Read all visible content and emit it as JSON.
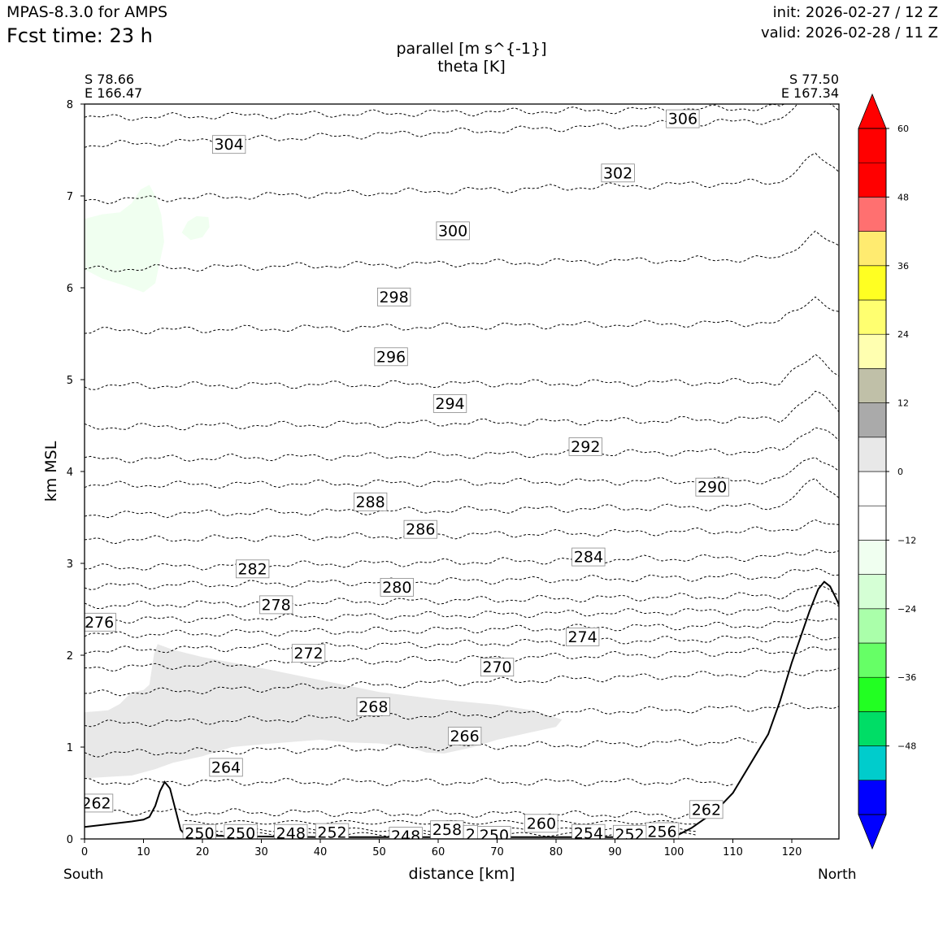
{
  "header": {
    "model": "MPAS-8.3.0 for AMPS",
    "fcst_time": "Fcst time:   23 h",
    "init": "init: 2026-02-27 / 12 Z",
    "valid": "valid: 2026-02-28 / 11 Z"
  },
  "chart_data": {
    "type": "cross-section contour",
    "title": "parallel [m s^{-1}]",
    "subtitle": "theta [K]",
    "xlabel": "distance [km]",
    "ylabel": "km MSL",
    "xlim": [
      0,
      128
    ],
    "ylim": [
      0,
      8
    ],
    "x_ticks": [
      "0",
      "10",
      "20",
      "30",
      "40",
      "50",
      "60",
      "70",
      "80",
      "90",
      "100",
      "110",
      "120"
    ],
    "y_ticks": [
      "0",
      "1",
      "2",
      "3",
      "4",
      "5",
      "6",
      "7",
      "8"
    ],
    "start_point": {
      "lat": "S 78.66",
      "lon": "E 166.47",
      "direction": "South"
    },
    "end_point": {
      "lat": "S 77.50",
      "lon": "E 167.34",
      "direction": "North"
    },
    "theta_levels": [
      262,
      264,
      266,
      268,
      270,
      272,
      274,
      276,
      278,
      280,
      282,
      284,
      286,
      288,
      290,
      292,
      294,
      296,
      298,
      300,
      302,
      304,
      306
    ],
    "theta_labels": [
      {
        "text": "306",
        "x": 101.5,
        "y": 7.84
      },
      {
        "text": "304",
        "x": 24.5,
        "y": 7.56
      },
      {
        "text": "302",
        "x": 90.5,
        "y": 7.25
      },
      {
        "text": "300",
        "x": 62.5,
        "y": 6.62
      },
      {
        "text": "298",
        "x": 52.5,
        "y": 5.9
      },
      {
        "text": "296",
        "x": 52,
        "y": 5.25
      },
      {
        "text": "294",
        "x": 62,
        "y": 4.74
      },
      {
        "text": "292",
        "x": 85,
        "y": 4.27
      },
      {
        "text": "290",
        "x": 106.5,
        "y": 3.83
      },
      {
        "text": "288",
        "x": 48.5,
        "y": 3.67
      },
      {
        "text": "286",
        "x": 57,
        "y": 3.37
      },
      {
        "text": "284",
        "x": 85.5,
        "y": 3.07
      },
      {
        "text": "282",
        "x": 28.5,
        "y": 2.94
      },
      {
        "text": "280",
        "x": 53,
        "y": 2.74
      },
      {
        "text": "278",
        "x": 32.5,
        "y": 2.55
      },
      {
        "text": "276",
        "x": 2.5,
        "y": 2.36
      },
      {
        "text": "274",
        "x": 84.5,
        "y": 2.2
      },
      {
        "text": "272",
        "x": 38,
        "y": 2.02
      },
      {
        "text": "270",
        "x": 70,
        "y": 1.87
      },
      {
        "text": "268",
        "x": 49,
        "y": 1.44
      },
      {
        "text": "266",
        "x": 64.5,
        "y": 1.12
      },
      {
        "text": "264",
        "x": 24,
        "y": 0.78
      },
      {
        "text": "262",
        "x": 2,
        "y": 0.39
      },
      {
        "text": "262",
        "x": 105.5,
        "y": 0.32
      },
      {
        "text": "260",
        "x": 77.5,
        "y": 0.17
      },
      {
        "text": "258",
        "x": 61.5,
        "y": 0.1
      },
      {
        "text": "256",
        "x": 98,
        "y": 0.08
      },
      {
        "text": "254",
        "x": 85.5,
        "y": 0.06
      },
      {
        "text": "252",
        "x": 42,
        "y": 0.07
      },
      {
        "text": "252",
        "x": 92.5,
        "y": 0.05
      },
      {
        "text": "250",
        "x": 19.5,
        "y": 0.06
      },
      {
        "text": "250",
        "x": 26.5,
        "y": 0.06
      },
      {
        "text": "250",
        "x": 69.5,
        "y": 0.04
      },
      {
        "text": "248",
        "x": 35,
        "y": 0.06
      },
      {
        "text": "248",
        "x": 54.5,
        "y": 0.03
      },
      {
        "text": "2",
        "x": 65.5,
        "y": 0.05
      }
    ],
    "colorbar": {
      "ticks": [
        "60",
        "48",
        "36",
        "24",
        "12",
        "0",
        "−12",
        "−24",
        "−36",
        "−48"
      ],
      "bounds": [
        -60,
        -54,
        -48,
        -42,
        -36,
        -30,
        -24,
        -18,
        -12,
        -6,
        0,
        6,
        12,
        18,
        24,
        30,
        36,
        42,
        48,
        54,
        60
      ],
      "colors": [
        "#0000ff",
        "#00cccc",
        "#00dd66",
        "#22ff22",
        "#66ff66",
        "#aaffaa",
        "#d5ffd5",
        "#f0fff0",
        "#ffffff",
        "#ffffff",
        "#e8e8e8",
        "#aaaaaa",
        "#c0c0a8",
        "#ffffb0",
        "#ffff70",
        "#ffff22",
        "#ffeb70",
        "#ff7070",
        "#ff0000",
        "#ff0000"
      ],
      "extend_low": "#0000ff",
      "extend_high": "#ff0000"
    },
    "shaded_regions": [
      {
        "name": "light-gray positive wind band",
        "bin": "6 to 12",
        "color": "#e8e8e8"
      },
      {
        "name": "pale green negative wind patch",
        "bin": "-12 to -6",
        "color": "#f0fff0"
      }
    ],
    "terrain": {
      "x": [
        0,
        4,
        8,
        10,
        11,
        12,
        12.8,
        13.6,
        14.5,
        15.5,
        16.3,
        17,
        18,
        25,
        40,
        60,
        75,
        90,
        100,
        103,
        107,
        110,
        113,
        116,
        118,
        120,
        121.5,
        123,
        124.5,
        125.5,
        126.5,
        127.5,
        128
      ],
      "y": [
        0.13,
        0.16,
        0.19,
        0.21,
        0.24,
        0.36,
        0.52,
        0.62,
        0.55,
        0.3,
        0.1,
        0.05,
        0.04,
        0.03,
        0.02,
        0.02,
        0.02,
        0.02,
        0.02,
        0.12,
        0.3,
        0.5,
        0.82,
        1.14,
        1.5,
        1.92,
        2.2,
        2.48,
        2.72,
        2.8,
        2.75,
        2.62,
        2.55
      ]
    }
  }
}
